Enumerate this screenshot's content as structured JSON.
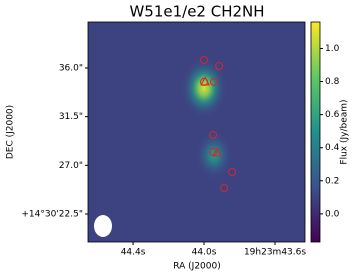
{
  "chart_data": {
    "type": "image",
    "title": "W51e1/e2 CH2NH",
    "x_label": "RA (J2000)",
    "y_label": "DEC (J2000)",
    "colorbar_label": "Flux (Jy/beam)",
    "colormap": "viridis",
    "marker_color": "#d62728",
    "xlim": [
      44.654,
      43.431
    ],
    "xticks": [
      {
        "value": 44.4,
        "label": "44.4s"
      },
      {
        "value": 44.0,
        "label": "44.0s"
      },
      {
        "value": 43.6,
        "label": "19h23m43.6s"
      }
    ],
    "ylim": [
      19.91,
      40.25
    ],
    "yticks": [
      {
        "value": 36.0,
        "label": "36.0\""
      },
      {
        "value": 31.5,
        "label": "31.5\""
      },
      {
        "value": 27.0,
        "label": "27.0\""
      },
      {
        "value": 22.5,
        "label": "+14°30'22.5\""
      }
    ],
    "clim": [
      -0.17,
      1.16
    ],
    "cticks": [
      {
        "value": 0,
        "label": "0.0"
      },
      {
        "value": 0.2,
        "label": "0.2"
      },
      {
        "value": 0.4,
        "label": "0.4"
      },
      {
        "value": 0.6,
        "label": "0.6"
      },
      {
        "value": 0.8,
        "label": "0.8"
      },
      {
        "value": 1.0,
        "label": "1.0"
      }
    ],
    "background": 0.1,
    "sources": {
      "ra": [
        44.0,
        43.944
      ],
      "dec": [
        34.15,
        27.92
      ],
      "peak": [
        1.1,
        0.55
      ]
    },
    "circles": {
      "ra": [
        44.0,
        43.915,
        44.0,
        43.944,
        43.949,
        43.949,
        43.842,
        43.887
      ],
      "dec": [
        36.74,
        36.18,
        34.71,
        34.71,
        29.81,
        28.24,
        26.39,
        24.91
      ]
    },
    "triangles": {
      "ra": [
        43.994,
        43.927
      ],
      "dec": [
        34.71,
        28.15
      ]
    }
  }
}
